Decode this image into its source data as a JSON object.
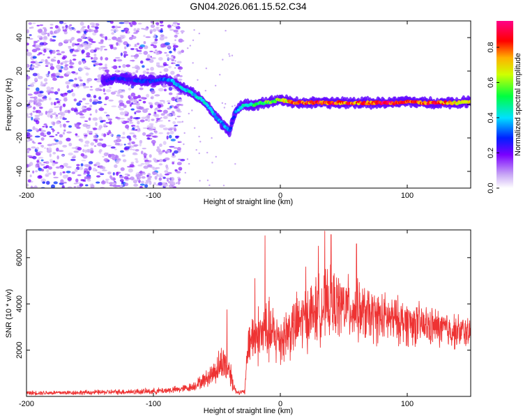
{
  "title": "GN04.2026.061.15.52.C34",
  "colors": {
    "snr_line": "#ee3333",
    "background": "#ffffff",
    "axis": "#000000"
  },
  "chart_data": [
    {
      "id": "spectrogram",
      "type": "heatmap",
      "xlabel": "Height of straight line (km)",
      "ylabel": "Frequency (Hz)",
      "xlim": [
        -200,
        150
      ],
      "ylim": [
        -50,
        50
      ],
      "xticks": [
        -200,
        -100,
        0,
        100
      ],
      "xtick_labels": [
        "-200",
        "-100",
        "0",
        "100"
      ],
      "yticks": [
        -40,
        -20,
        0,
        20,
        40
      ],
      "ytick_labels": [
        "-40",
        "-20",
        "0",
        "20",
        "40"
      ],
      "colorbar": {
        "label": "Normalized spectral amplitude",
        "range": [
          0.0,
          0.95
        ],
        "ticks": [
          0.0,
          0.2,
          0.4,
          0.6,
          0.8
        ],
        "tick_labels": [
          "0.0",
          "0.2",
          "0.4",
          "0.6",
          "0.8"
        ]
      },
      "noise_region": {
        "x_from": -200,
        "x_to": -85,
        "amplitude": 0.15
      },
      "tone_trace": {
        "x": [
          -140,
          -130,
          -120,
          -110,
          -100,
          -92,
          -85,
          -78,
          -70,
          -62,
          -55,
          -50,
          -45,
          -40,
          -38,
          -35,
          -30,
          -25,
          -20,
          -15,
          -10,
          -5,
          0,
          5,
          10,
          20,
          30,
          40,
          50,
          60,
          70,
          80,
          90,
          100,
          110,
          120,
          130,
          140,
          150
        ],
        "y": [
          14,
          16,
          15,
          14,
          14,
          15,
          14,
          10,
          7,
          3,
          -3,
          -8,
          -12,
          -16,
          -10,
          -4,
          -1,
          0,
          0,
          1,
          1,
          2,
          3,
          2,
          1,
          1,
          1,
          1,
          1,
          1,
          1,
          1,
          1,
          2,
          1,
          1,
          1,
          1,
          2
        ],
        "amp": [
          0.25,
          0.3,
          0.3,
          0.3,
          0.3,
          0.35,
          0.4,
          0.45,
          0.45,
          0.45,
          0.45,
          0.4,
          0.4,
          0.35,
          0.3,
          0.35,
          0.45,
          0.5,
          0.55,
          0.6,
          0.6,
          0.65,
          0.7,
          0.75,
          0.85,
          0.9,
          0.95,
          0.9,
          0.9,
          0.85,
          0.9,
          0.95,
          0.9,
          0.85,
          0.9,
          0.9,
          0.85,
          0.75,
          0.7
        ]
      }
    },
    {
      "id": "snr",
      "type": "line",
      "xlabel": "Height of straight line (km)",
      "ylabel": "SNR (10 * v/v)",
      "xlim": [
        -200,
        150
      ],
      "ylim": [
        0,
        7200
      ],
      "xticks": [
        -200,
        -100,
        0,
        100
      ],
      "xtick_labels": [
        "-200",
        "-100",
        "0",
        "100"
      ],
      "yticks": [
        2000,
        4000,
        6000
      ],
      "ytick_labels": [
        "2000",
        "4000",
        "6000"
      ],
      "series": [
        {
          "name": "SNR",
          "envelope_x": [
            -200,
            -150,
            -100,
            -80,
            -70,
            -60,
            -55,
            -50,
            -45,
            -40,
            -38,
            -35,
            -30,
            -28,
            -25,
            -20,
            -15,
            -10,
            -5,
            0,
            10,
            20,
            30,
            40,
            50,
            60,
            70,
            80,
            90,
            100,
            110,
            120,
            130,
            140,
            150
          ],
          "envelope_mean": [
            150,
            170,
            220,
            300,
            400,
            700,
            900,
            1200,
            1500,
            1200,
            700,
            200,
            180,
            200,
            2500,
            2600,
            2700,
            2800,
            2600,
            2500,
            3000,
            3400,
            3800,
            4000,
            3900,
            3700,
            3500,
            3400,
            3300,
            3200,
            3100,
            3000,
            2900,
            2800,
            2800
          ],
          "envelope_spread": [
            100,
            110,
            140,
            160,
            200,
            350,
            500,
            700,
            900,
            800,
            500,
            120,
            100,
            150,
            1100,
            1300,
            1500,
            1600,
            1400,
            1300,
            1400,
            1500,
            1600,
            1600,
            1500,
            1400,
            1300,
            1200,
            1100,
            1100,
            1000,
            900,
            900,
            800,
            700
          ],
          "peaks": [
            {
              "x": -42,
              "y": 3750
            },
            {
              "x": -20,
              "y": 5100
            },
            {
              "x": -12,
              "y": 6950
            },
            {
              "x": 20,
              "y": 5600
            },
            {
              "x": 30,
              "y": 6500
            },
            {
              "x": 35,
              "y": 7150
            },
            {
              "x": 40,
              "y": 7000
            },
            {
              "x": 60,
              "y": 6600
            }
          ],
          "samples": 1800
        }
      ]
    }
  ]
}
